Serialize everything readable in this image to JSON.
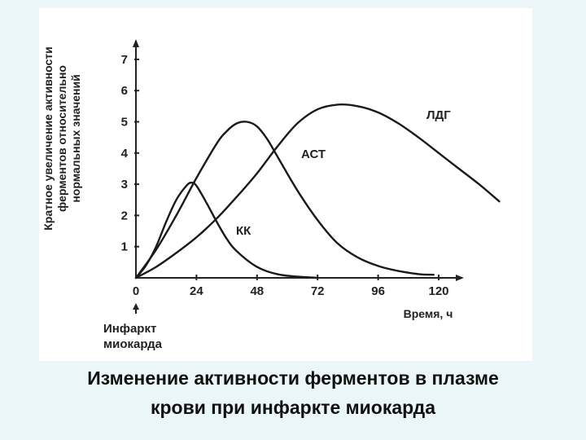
{
  "caption": {
    "line1": "Изменение активности ферментов в плазме",
    "line2": "крови при инфаркте миокарда"
  },
  "chart_data": {
    "type": "line",
    "title": "",
    "xlabel": "Время, ч",
    "ylabel_lines": [
      "Кратное увеличение активности",
      "ферментов относительно",
      "нормальных значений"
    ],
    "xlim": [
      0,
      144
    ],
    "ylim": [
      0,
      7.5
    ],
    "x_ticks": [
      "0",
      "24",
      "48",
      "72",
      "96",
      "120"
    ],
    "y_ticks": [
      "1",
      "2",
      "3",
      "4",
      "5",
      "6",
      "7"
    ],
    "grid": false,
    "legend": "inline labels",
    "event_marker": {
      "x": 0,
      "label_lines": [
        "Инфаркт",
        "миокарда"
      ]
    },
    "series": [
      {
        "name": "КК",
        "x": [
          0,
          4,
          8,
          12,
          16,
          20,
          22,
          24,
          28,
          32,
          36,
          40,
          48,
          56,
          64,
          72
        ],
        "y": [
          0,
          0.4,
          1.0,
          1.8,
          2.5,
          2.95,
          3.05,
          2.95,
          2.4,
          1.8,
          1.25,
          0.85,
          0.35,
          0.12,
          0.04,
          0.0
        ]
      },
      {
        "name": "АСТ",
        "x": [
          0,
          8,
          16,
          24,
          32,
          36,
          40,
          44,
          48,
          52,
          56,
          64,
          72,
          80,
          88,
          96,
          104,
          112,
          118
        ],
        "y": [
          0,
          0.9,
          2.0,
          3.2,
          4.3,
          4.7,
          4.95,
          5.0,
          4.85,
          4.45,
          3.9,
          2.8,
          1.85,
          1.1,
          0.65,
          0.38,
          0.22,
          0.12,
          0.1
        ]
      },
      {
        "name": "ЛДГ",
        "x": [
          0,
          8,
          16,
          24,
          32,
          40,
          48,
          56,
          64,
          72,
          80,
          88,
          96,
          104,
          112,
          120,
          128,
          136,
          144
        ],
        "y": [
          0,
          0.35,
          0.8,
          1.3,
          1.9,
          2.6,
          3.35,
          4.2,
          4.95,
          5.4,
          5.55,
          5.5,
          5.3,
          4.95,
          4.5,
          4.0,
          3.5,
          3.0,
          2.45
        ]
      }
    ]
  }
}
